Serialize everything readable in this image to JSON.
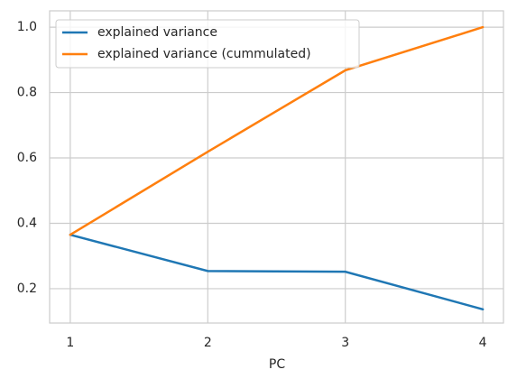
{
  "chart_data": {
    "type": "line",
    "xlabel": "PC",
    "x": [
      1,
      2,
      3,
      4
    ],
    "series": [
      {
        "name": "explained variance",
        "color": "#1f77b4",
        "values": [
          0.365,
          0.254,
          0.252,
          0.137
        ]
      },
      {
        "name": "explained variance (cummulated)",
        "color": "#ff7f0e",
        "values": [
          0.365,
          0.619,
          0.868,
          1.0
        ]
      }
    ],
    "xlim": [
      0.85,
      4.15
    ],
    "xticks": [
      1,
      2,
      3,
      4
    ],
    "ylim": [
      0.095,
      1.05
    ],
    "yticks": [
      0.2,
      0.4,
      0.6,
      0.8,
      {
        "value": 1,
        "label": "1.0"
      }
    ],
    "grid": true,
    "legend": "upper-left"
  }
}
